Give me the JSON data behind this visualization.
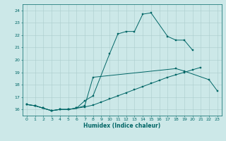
{
  "title": "",
  "xlabel": "Humidex (Indice chaleur)",
  "bg_color": "#cce8e8",
  "grid_color": "#aacccc",
  "line_color": "#006666",
  "xlim": [
    -0.5,
    23.5
  ],
  "ylim": [
    15.5,
    24.5
  ],
  "xticks": [
    0,
    1,
    2,
    3,
    4,
    5,
    6,
    7,
    8,
    9,
    10,
    11,
    12,
    13,
    14,
    15,
    16,
    17,
    18,
    19,
    20,
    21,
    22,
    23
  ],
  "yticks": [
    16,
    17,
    18,
    19,
    20,
    21,
    22,
    23,
    24
  ],
  "line1_x": [
    0,
    1,
    2,
    3,
    4,
    5,
    6,
    7,
    8,
    9,
    10,
    11,
    12,
    13,
    14,
    15,
    16,
    17,
    18,
    19,
    20,
    21
  ],
  "line1_y": [
    16.4,
    16.3,
    16.1,
    15.9,
    16.0,
    16.0,
    16.1,
    16.2,
    16.35,
    16.6,
    16.85,
    17.1,
    17.35,
    17.6,
    17.85,
    18.1,
    18.35,
    18.6,
    18.8,
    19.0,
    19.2,
    19.4
  ],
  "line2_x": [
    0,
    1,
    2,
    3,
    4,
    5,
    6,
    7,
    8,
    18,
    19,
    22,
    23
  ],
  "line2_y": [
    16.4,
    16.3,
    16.1,
    15.9,
    16.0,
    16.0,
    16.1,
    16.3,
    18.6,
    19.3,
    19.1,
    18.4,
    17.5
  ],
  "line3_x": [
    0,
    1,
    2,
    3,
    4,
    5,
    6,
    7,
    8,
    10,
    11,
    12,
    13,
    14,
    15,
    17,
    18,
    19,
    20
  ],
  "line3_y": [
    16.4,
    16.3,
    16.1,
    15.9,
    16.0,
    16.0,
    16.1,
    16.7,
    17.1,
    20.5,
    22.1,
    22.3,
    22.3,
    23.7,
    23.8,
    21.9,
    21.6,
    21.6,
    20.8
  ]
}
